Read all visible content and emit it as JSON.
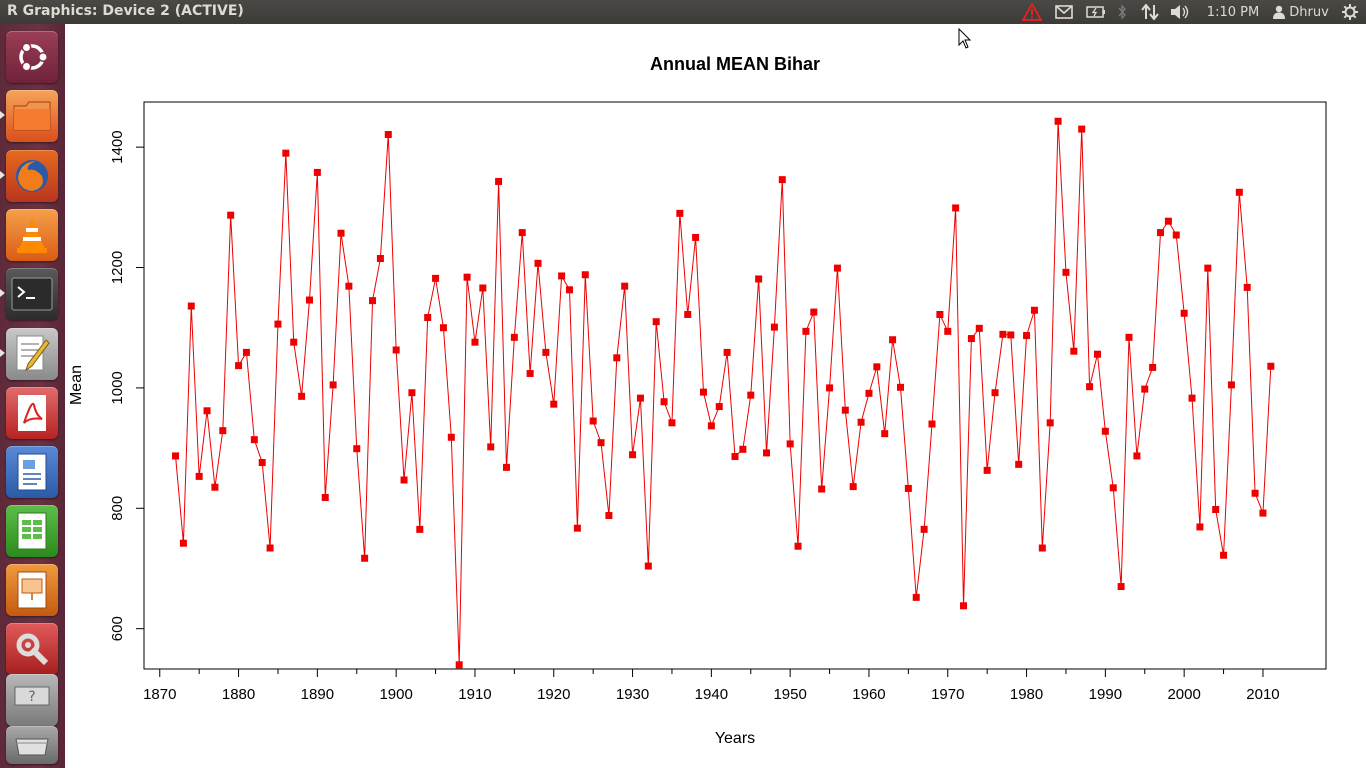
{
  "window": {
    "title": "R Graphics: Device 2 (ACTIVE)"
  },
  "panel": {
    "clock": "1:10 PM",
    "user": "Dhruv",
    "indicators": [
      "warning-icon",
      "mail-icon",
      "battery-icon",
      "bluetooth-icon",
      "network-icon",
      "volume-icon",
      "user-icon",
      "settings-gear-icon"
    ]
  },
  "launcher": {
    "items": [
      "ubuntu-dash-icon",
      "files-icon",
      "firefox-icon",
      "vlc-icon",
      "terminal-icon",
      "text-editor-icon",
      "pdf-viewer-icon",
      "writer-icon",
      "calc-icon",
      "impress-icon",
      "system-settings-icon",
      "workspace-icon",
      "trash-icon"
    ]
  },
  "colors": {
    "series": "#ee0000",
    "axis": "#000000",
    "panel_bg": "#3c3b37",
    "launcher_bg": "#632d3d"
  },
  "chart_data": {
    "type": "line",
    "title": "Annual MEAN Bihar",
    "xlabel": "Years",
    "ylabel": "Mean",
    "xlim": [
      1868,
      2018
    ],
    "ylim": [
      533,
      1475
    ],
    "xticks": [
      1870,
      1880,
      1890,
      1900,
      1910,
      1920,
      1930,
      1940,
      1950,
      1960,
      1970,
      1980,
      1990,
      2000,
      2010
    ],
    "yticks": [
      600,
      800,
      1000,
      1200,
      1400
    ],
    "marker": "square",
    "series": [
      {
        "x": [
          1872,
          1873,
          1874,
          1875,
          1876,
          1877,
          1878,
          1879,
          1880,
          1881,
          1882,
          1883,
          1884,
          1885,
          1886,
          1887,
          1888,
          1889,
          1890,
          1891,
          1892,
          1893,
          1894,
          1895,
          1896,
          1897,
          1898,
          1899,
          1900,
          1901,
          1902,
          1903,
          1904,
          1905,
          1906,
          1907,
          1908,
          1909,
          1910,
          1911,
          1912,
          1913,
          1914,
          1915,
          1916,
          1917,
          1918,
          1919,
          1920,
          1921,
          1922,
          1923,
          1924,
          1925,
          1926,
          1927,
          1928,
          1929,
          1930,
          1931,
          1932,
          1933,
          1934,
          1935,
          1936,
          1937,
          1938,
          1939,
          1940,
          1941,
          1942,
          1943,
          1944,
          1945,
          1946,
          1947,
          1948,
          1949,
          1950,
          1951,
          1952,
          1953,
          1954,
          1955,
          1956,
          1957,
          1958,
          1959,
          1960,
          1961,
          1962,
          1963,
          1964,
          1965,
          1966,
          1967,
          1968,
          1969,
          1970,
          1971,
          1972,
          1973,
          1974,
          1975,
          1976,
          1977,
          1978,
          1979,
          1980,
          1981,
          1982,
          1983,
          1984,
          1985,
          1986,
          1987,
          1988,
          1989,
          1990,
          1991,
          1992,
          1993,
          1994,
          1995,
          1996,
          1997,
          1998,
          1999,
          2000,
          2001,
          2002,
          2003,
          2004,
          2005,
          2006,
          2007,
          2008,
          2009,
          2010,
          2011
        ],
        "y": [
          887,
          742,
          1136,
          853,
          962,
          835,
          929,
          1287,
          1037,
          1059,
          914,
          876,
          734,
          1106,
          1390,
          1076,
          986,
          1146,
          1358,
          818,
          1005,
          1257,
          1169,
          899,
          717,
          1145,
          1215,
          1421,
          1063,
          847,
          992,
          765,
          1117,
          1182,
          1100,
          918,
          540,
          1184,
          1076,
          1166,
          902,
          1343,
          868,
          1084,
          1258,
          1024,
          1207,
          1059,
          973,
          1186,
          1163,
          767,
          1188,
          945,
          909,
          788,
          1050,
          1169,
          889,
          983,
          704,
          1110,
          977,
          942,
          1290,
          1122,
          1250,
          993,
          937,
          969,
          1059,
          886,
          898,
          988,
          1181,
          892,
          1101,
          1346,
          907,
          737,
          1094,
          1126,
          832,
          1000,
          1199,
          963,
          836,
          943,
          991,
          1035,
          924,
          1080,
          1001,
          833,
          652,
          765,
          940,
          1122,
          1094,
          1299,
          638,
          1082,
          1099,
          863,
          992,
          1089,
          1088,
          873,
          1087,
          1129,
          734,
          942,
          1443,
          1192,
          1061,
          1430,
          1002,
          1056,
          928,
          834,
          670,
          1084,
          887,
          998,
          1034,
          1258,
          1277,
          1254,
          1124,
          983,
          769,
          1199,
          798,
          722,
          1005,
          1325,
          1167,
          825,
          792,
          1036
        ]
      }
    ]
  }
}
